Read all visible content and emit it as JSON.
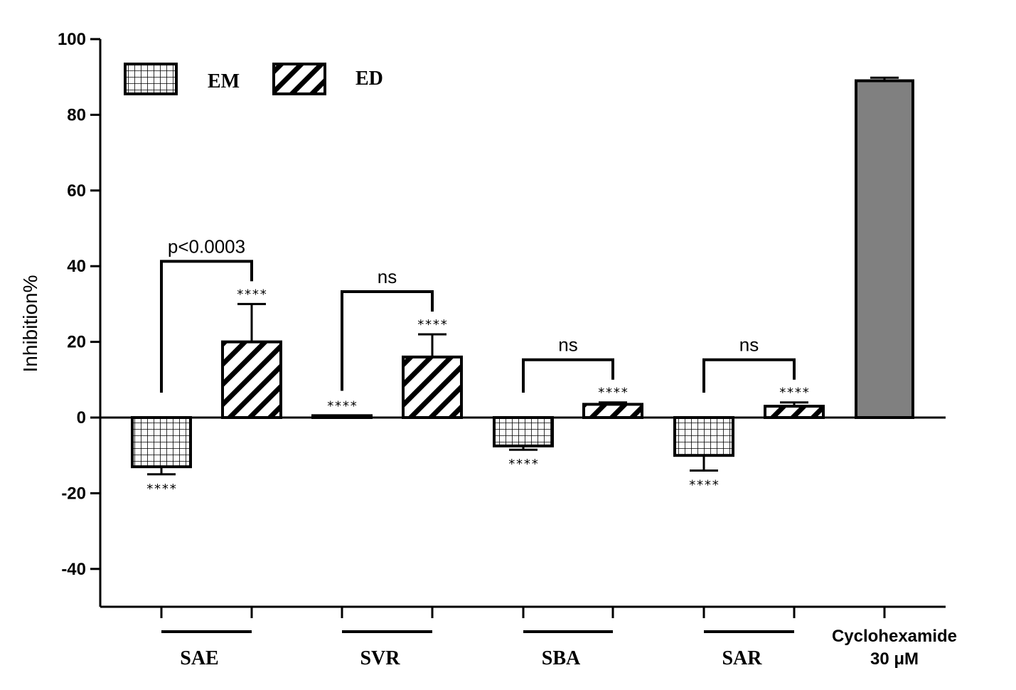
{
  "chart_data": {
    "type": "bar",
    "ylabel": "Inhibition%",
    "ylim": [
      -50,
      100
    ],
    "yticks": [
      100,
      80,
      60,
      40,
      20,
      0,
      -20,
      -40
    ],
    "legend": [
      {
        "name": "EM",
        "pattern": "grid"
      },
      {
        "name": "ED",
        "pattern": "diagonal"
      }
    ],
    "groups": [
      {
        "label": "SAE",
        "bars": [
          {
            "series": "EM",
            "value": -13,
            "error": 2,
            "stars": "****"
          },
          {
            "series": "ED",
            "value": 20,
            "error": 10,
            "stars": "****"
          }
        ],
        "comparison": "p<0.0003"
      },
      {
        "label": "SVR",
        "bars": [
          {
            "series": "EM",
            "value": 0.5,
            "error": 0,
            "stars": "****"
          },
          {
            "series": "ED",
            "value": 16,
            "error": 6,
            "stars": "****"
          }
        ],
        "comparison": "ns"
      },
      {
        "label": "SBA",
        "bars": [
          {
            "series": "EM",
            "value": -7.5,
            "error": 1,
            "stars": "****"
          },
          {
            "series": "ED",
            "value": 3.5,
            "error": 0.5,
            "stars": "****"
          }
        ],
        "comparison": "ns"
      },
      {
        "label": "SAR",
        "bars": [
          {
            "series": "EM",
            "value": -10,
            "error": 4,
            "stars": "****"
          },
          {
            "series": "ED",
            "value": 3,
            "error": 1,
            "stars": "****"
          }
        ],
        "comparison": "ns"
      }
    ],
    "control": {
      "label_line1": "Cyclohexamide",
      "label_line2": "30 μM",
      "value": 89,
      "error": 0.8,
      "color": "#808080"
    }
  }
}
